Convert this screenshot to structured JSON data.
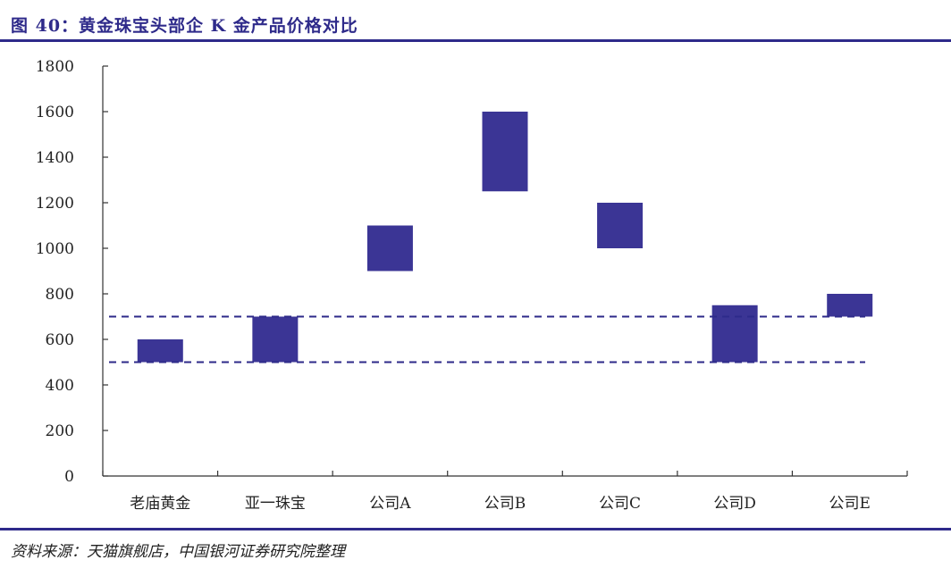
{
  "header": {
    "title": "图 40：黄金珠宝头部企 K 金产品价格对比"
  },
  "footer": {
    "source": "资料来源：天猫旗舰店，中国银河证券研究院整理"
  },
  "chart_data": {
    "type": "bar",
    "subtype": "floating-range",
    "title": "",
    "xlabel": "",
    "ylabel": "",
    "categories": [
      "老庙黄金",
      "亚一珠宝",
      "公司A",
      "公司B",
      "公司C",
      "公司D",
      "公司E"
    ],
    "ranges": [
      [
        500,
        600
      ],
      [
        500,
        700
      ],
      [
        900,
        1100
      ],
      [
        1250,
        1600
      ],
      [
        1000,
        1200
      ],
      [
        500,
        750
      ],
      [
        700,
        800
      ]
    ],
    "reference_lines": [
      500,
      700
    ],
    "reference_line_style": "dashed",
    "ylim": [
      0,
      1800
    ],
    "yticks": [
      0,
      200,
      400,
      600,
      800,
      1000,
      1200,
      1400,
      1600,
      1800
    ],
    "grid": false,
    "legend": "none",
    "colors": {
      "bar": "#3b3595",
      "reference_line": "#2e2a8a",
      "accent": "#2e2a8a",
      "axis": "#333333"
    }
  }
}
